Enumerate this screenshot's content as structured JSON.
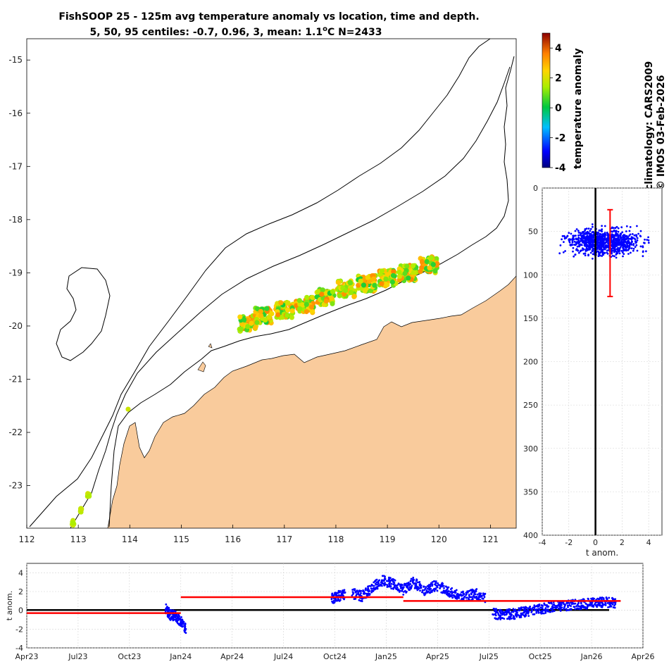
{
  "title": {
    "line1": "FishSOOP 25 - 125m avg temperature anomaly vs location, time and depth.",
    "line2_prefix": "5, 50, 95 centiles: -0.7, 0.96, 3, mean: 1.1",
    "line2_unit": "o",
    "line2_suffix": "C N=2433"
  },
  "side_label": {
    "line1": "climatology: CARS2009",
    "line2": "© IMOS 03-Feb-2026"
  },
  "colors": {
    "land": "#f9cb9c",
    "contour": "#000000",
    "scatter": "#0000ff",
    "reference": "#ff0000",
    "grid": "#cccccc"
  },
  "chart_data": [
    {
      "id": "map",
      "type": "scatter",
      "title": "temperature anomaly vs location",
      "xlabel": "",
      "ylabel": "",
      "xlim": [
        112,
        121.5
      ],
      "ylim": [
        -23.8,
        -14.6
      ],
      "x_ticks": [
        112,
        113,
        114,
        115,
        116,
        117,
        118,
        119,
        120,
        121
      ],
      "y_ticks": [
        -15,
        -16,
        -17,
        -18,
        -19,
        -20,
        -21,
        -22,
        -23
      ],
      "tracks": [
        {
          "name": "main-cluster",
          "lon": [
            116.3,
            116.6,
            117.0,
            117.4,
            117.8,
            118.2,
            118.6,
            119.0,
            119.4,
            119.8
          ],
          "lat": [
            -19.95,
            -19.8,
            -19.7,
            -19.6,
            -19.45,
            -19.3,
            -19.2,
            -19.1,
            -19.0,
            -18.85
          ]
        },
        {
          "name": "south-west-track",
          "lon": [
            112.9,
            113.05,
            113.2
          ],
          "lat": [
            -23.7,
            -23.45,
            -23.2
          ]
        },
        {
          "name": "single-point",
          "lon": [
            113.98
          ],
          "lat": [
            -21.6
          ]
        }
      ]
    },
    {
      "id": "colorbar",
      "type": "heatmap",
      "title": "temperature anomaly",
      "range": [
        -4,
        5
      ],
      "ticks": [
        4,
        2,
        0,
        -2,
        -4
      ],
      "colormap": "jet"
    },
    {
      "id": "depth",
      "type": "scatter",
      "title": "",
      "xlabel": "t anom.",
      "ylabel": "",
      "xlim": [
        -4,
        5
      ],
      "ylim": [
        0,
        400
      ],
      "x_ticks": [
        -4,
        -2,
        0,
        2,
        4
      ],
      "y_ticks": [
        0,
        50,
        100,
        150,
        200,
        250,
        300,
        350,
        400
      ],
      "cloud": {
        "x_range": [
          -3.2,
          4.5
        ],
        "depth_range": [
          45,
          88
        ],
        "depth_center": 62
      },
      "centile_bar": {
        "x": 1.1,
        "depth_top": 25,
        "depth_bottom": 125
      }
    },
    {
      "id": "timeseries",
      "type": "line",
      "title": "",
      "xlabel": "",
      "ylabel": "t anom.",
      "xlim": [
        0,
        36
      ],
      "ylim": [
        -4,
        5
      ],
      "x_ticks": [
        "Apr23",
        "Jul23",
        "Oct23",
        "Jan24",
        "Apr24",
        "Jul24",
        "Oct24",
        "Jan25",
        "Apr25",
        "Jul25",
        "Oct25",
        "Jan26",
        "Apr26"
      ],
      "y_ticks": [
        4,
        2,
        0,
        -2,
        -4
      ],
      "observation_segments": [
        {
          "t": [
            8.1,
            8.4,
            8.7,
            9.0,
            9.3
          ],
          "y": [
            0.2,
            -0.5,
            -0.6,
            -1.2,
            -2.0
          ]
        },
        {
          "t": [
            17.8,
            18.2,
            18.6
          ],
          "y": [
            1.2,
            1.5,
            1.7
          ]
        },
        {
          "t": [
            19.0,
            19.6,
            20.2,
            20.8,
            21.4,
            22.0,
            22.6,
            23.2,
            23.8,
            24.4,
            25.0,
            25.6,
            26.2,
            26.8
          ],
          "y": [
            1.8,
            1.5,
            2.4,
            3.2,
            2.8,
            2.2,
            3.0,
            2.1,
            2.6,
            2.3,
            1.7,
            1.4,
            1.8,
            1.2
          ]
        },
        {
          "t": [
            27.2,
            27.8,
            28.4,
            29.0,
            29.6,
            30.2,
            30.8,
            31.4,
            32.0,
            32.6,
            33.2,
            33.8,
            34.4
          ],
          "y": [
            -0.3,
            -0.5,
            -0.4,
            -0.2,
            0.0,
            0.2,
            0.4,
            0.5,
            0.6,
            0.7,
            0.8,
            0.9,
            0.7
          ]
        }
      ],
      "mean_segments": [
        {
          "t0": 0,
          "t1": 9.0,
          "y": -0.3
        },
        {
          "t0": 9.0,
          "t1": 22.0,
          "y": 1.4
        },
        {
          "t0": 22.0,
          "t1": 34.7,
          "y": 1.0
        }
      ]
    }
  ]
}
